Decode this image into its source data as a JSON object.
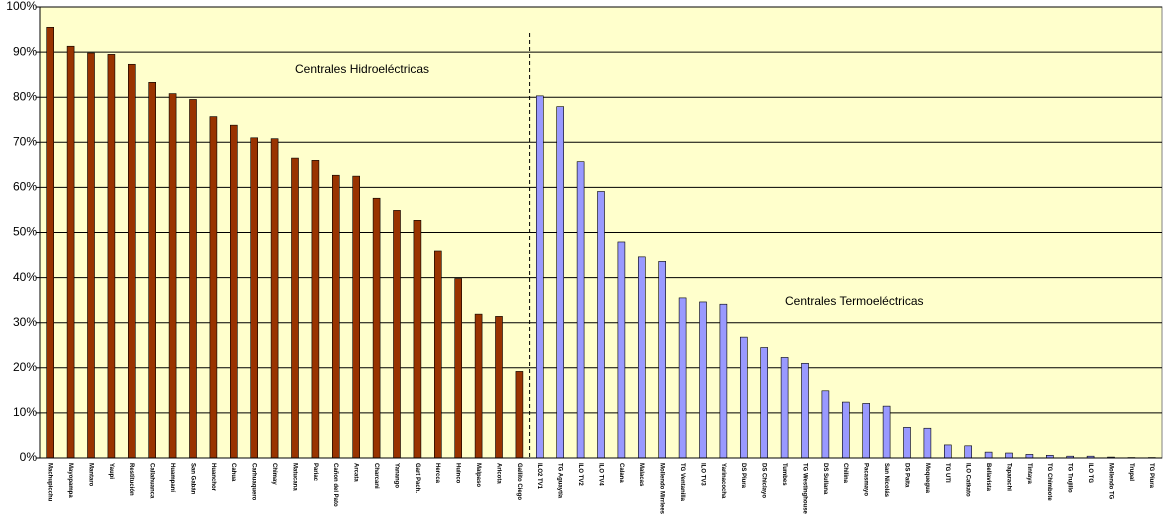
{
  "chart_data": {
    "type": "bar",
    "annotations": [
      "Centrales  Hidroeléctricas",
      "Centrales Termoeléctricas"
    ],
    "categories": [
      "Machupicchu",
      "Mayopampa",
      "Mantaro",
      "Yaupi",
      "Restitución",
      "Callahuanca",
      "Huampaní",
      "San Gabán",
      "Huanchor",
      "Cahua",
      "Carhuaquero",
      "Chimay",
      "Matucana",
      "Pariac",
      "Cañon del Pato",
      "Arcata",
      "Charcani",
      "Yanango",
      "Gart Pach.",
      "Hercca",
      "Huinco",
      "Malpaso",
      "Aricota",
      "Gallito Ciego",
      "ILO2 TV1",
      "TG Aguaytía",
      "ILO TV2",
      "ILO TV4",
      "Calana",
      "Malacas",
      "Mollendo Mirrlees",
      "TG Ventanilla",
      "ILO TV3",
      "Yarinacocha",
      "DS Piura",
      "DS Chiclayo",
      "Tumbes",
      "TG Westinghouse",
      "DS Sullana",
      "Chilina",
      "Pacasmayo",
      "San Nicolás",
      "DS Paita",
      "Moquegua",
      "TG UTI",
      "ILO Catkato",
      "Bellavista",
      "Taparachi",
      "Tintaya",
      "TG Chimbote",
      "TG Trujillo",
      "ILO TG",
      "Mollendo TG",
      "Trupal",
      "TG Piura"
    ],
    "series": [
      {
        "color": "#993300",
        "values": [
          95.5,
          91.3,
          89.8,
          89.5,
          87.3,
          83.3,
          80.8,
          79.5,
          75.7,
          73.8,
          71.0,
          70.8,
          66.5,
          66.0,
          62.7,
          62.5,
          57.6,
          54.9,
          52.7,
          45.9,
          39.8,
          31.9,
          31.4,
          19.2,
          null,
          null,
          null,
          null,
          null,
          null,
          null,
          null,
          null,
          null,
          null,
          null,
          null,
          null,
          null,
          null,
          null,
          null,
          null,
          null,
          null,
          null,
          null,
          null,
          null,
          null,
          null,
          null,
          null,
          null,
          null
        ]
      },
      {
        "color": "#9999ff",
        "values": [
          null,
          null,
          null,
          null,
          null,
          null,
          null,
          null,
          null,
          null,
          null,
          null,
          null,
          null,
          null,
          null,
          null,
          null,
          null,
          null,
          null,
          null,
          null,
          null,
          80.3,
          77.9,
          65.7,
          59.1,
          47.9,
          44.6,
          43.6,
          35.5,
          34.6,
          34.1,
          26.8,
          24.5,
          22.3,
          21.0,
          14.9,
          12.4,
          12.1,
          11.5,
          6.8,
          6.6,
          2.9,
          2.7,
          1.3,
          1.1,
          0.8,
          0.6,
          0.4,
          0.4,
          0.2,
          0.1,
          0.1
        ]
      }
    ],
    "ylim": [
      0,
      100
    ],
    "yticks": [
      {
        "value": 0,
        "label": "0%"
      },
      {
        "value": 10,
        "label": "10%"
      },
      {
        "value": 20,
        "label": "20%"
      },
      {
        "value": 30,
        "label": "30%"
      },
      {
        "value": 40,
        "label": "40%"
      },
      {
        "value": 50,
        "label": "50%"
      },
      {
        "value": 60,
        "label": "60%"
      },
      {
        "value": 70,
        "label": "70%"
      },
      {
        "value": 80,
        "label": "80%"
      },
      {
        "value": 90,
        "label": "90%"
      },
      {
        "value": 100,
        "label": "100%"
      }
    ],
    "grid": true
  }
}
